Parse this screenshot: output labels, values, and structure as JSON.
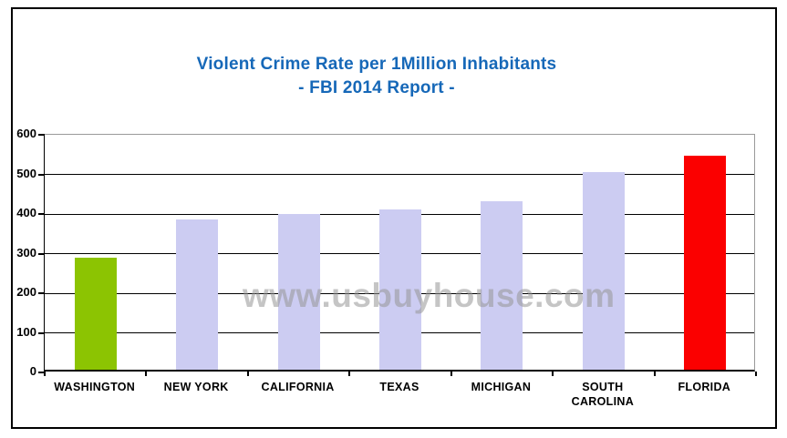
{
  "window": {
    "background_color": "#ffffff",
    "border_color": "#000000"
  },
  "title": {
    "line1": "Violent Crime Rate per 1Million Inhabitants",
    "line2": "- FBI 2014 Report -",
    "color": "#1668b8"
  },
  "watermark": {
    "text": "www.usbuyhouse.com"
  },
  "chart_data": {
    "type": "bar",
    "title": "Violent Crime Rate per 1Million Inhabitants - FBI 2014 Report -",
    "categories": [
      "WASHINGTON",
      "NEW YORK",
      "CALIFORNIA",
      "TEXAS",
      "MICHIGAN",
      "SOUTH CAROLINA",
      "FLORIDA"
    ],
    "values": [
      283,
      380,
      394,
      405,
      426,
      498,
      540
    ],
    "bar_colors": [
      "#8cc402",
      "#ccccf2",
      "#ccccf2",
      "#ccccf2",
      "#ccccf2",
      "#ccccf2",
      "#fb0000"
    ],
    "xlabel": "",
    "ylabel": "",
    "ylim": [
      0,
      600
    ],
    "yticks": [
      600,
      500,
      400,
      300,
      200,
      100,
      0
    ],
    "grid": "horizontal",
    "legend": "none",
    "accent_colors": {
      "highlight_low": "#8cc402",
      "neutral": "#ccccf2",
      "highlight_high": "#fb0000",
      "gridline": "#000000",
      "plot_border": "#9a9a9a"
    }
  }
}
